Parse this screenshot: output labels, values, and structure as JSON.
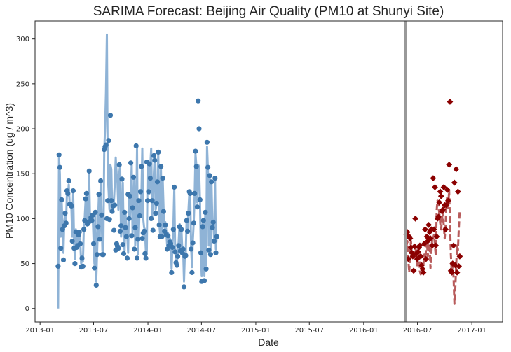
{
  "chart_data": {
    "type": "line",
    "title": "SARIMA Forecast: Beijing Air Quality (PM10 at Shunyi Site)",
    "xlabel": "Date",
    "ylabel": "PM10 Concentration (ug / m^3)",
    "xlim": [
      "2012-12-15",
      "2017-04-15"
    ],
    "ylim": [
      -15,
      320
    ],
    "x_ticks": [
      "2013-01",
      "2013-07",
      "2014-01",
      "2014-07",
      "2015-01",
      "2015-07",
      "2016-01",
      "2016-07",
      "2017-01"
    ],
    "y_ticks": [
      0,
      50,
      100,
      150,
      200,
      250,
      300
    ],
    "grid": false,
    "legend": "none",
    "train_end": "2016-05-22",
    "colors": {
      "fitted_line": "#8fb3d6",
      "observed_points": "#3d77ad",
      "forecast_line": "#b85c5c",
      "forecast_points": "#8b0000",
      "divider": "#999999",
      "axis": "#262626"
    },
    "series": [
      {
        "name": "observed_train",
        "style": "points",
        "start": "2013-03-03",
        "step_days": 3,
        "values": [
          47,
          171,
          157,
          67,
          121,
          88,
          54,
          92,
          106,
          95,
          131,
          128,
          142,
          116,
          116,
          114,
          75,
          131,
          67,
          50,
          85,
          68,
          70,
          82,
          85,
          72,
          46,
          56,
          47,
          88,
          98,
          122,
          128,
          94,
          96,
          153,
          97,
          101,
          98,
          104,
          72,
          45,
          107,
          26,
          60,
          91,
          127,
          77,
          142,
          104,
          60,
          60,
          177,
          180,
          182,
          100,
          120,
          187,
          99,
          215,
          120,
          108,
          114,
          87,
          115,
          65,
          72,
          69,
          67,
          160,
          86,
          92,
          144,
          71,
          61,
          107,
          90,
          80,
          56,
          127,
          100,
          125,
          162,
          81,
          112,
          146,
          66,
          90,
          181,
          56,
          77,
          120,
          103,
          130,
          158,
          78,
          84,
          86,
          61,
          56,
          163,
          120,
          130,
          161,
          145,
          100,
          120,
          87,
          170,
          165,
          106,
          117,
          141,
          174,
          93,
          80,
          158,
          80,
          145,
          108,
          86,
          93,
          82,
          66,
          81,
          70,
          74,
          72,
          40,
          68,
          88,
          135,
          63,
          51,
          48,
          58,
          70,
          91,
          64,
          88,
          62,
          66,
          24,
          58,
          59,
          98,
          86,
          106,
          130,
          128,
          66,
          40,
          73,
          95,
          128,
          175,
          158,
          113,
          231,
          200,
          121,
          62,
          30,
          91,
          98,
          31,
          107,
          44,
          185,
          157,
          65,
          148,
          60,
          141,
          90,
          96,
          75,
          145,
          62,
          80
        ]
      },
      {
        "name": "fitted",
        "style": "line",
        "start": "2013-03-03",
        "step_days": 3,
        "values": [
          0,
          168,
          150,
          80,
          120,
          92,
          62,
          96,
          104,
          98,
          128,
          125,
          138,
          118,
          116,
          112,
          80,
          128,
          72,
          55,
          88,
          72,
          72,
          84,
          86,
          74,
          50,
          58,
          52,
          90,
          100,
          120,
          126,
          96,
          98,
          150,
          100,
          102,
          100,
          104,
          76,
          50,
          106,
          30,
          62,
          94,
          126,
          80,
          140,
          106,
          64,
          64,
          175,
          200,
          240,
          305,
          150,
          130,
          110,
          160,
          155,
          110,
          115,
          120,
          140,
          168,
          150,
          140,
          110,
          150,
          160,
          80,
          92,
          140,
          76,
          64,
          106,
          92,
          82,
          62,
          124,
          100,
          124,
          160,
          84,
          110,
          145,
          70,
          92,
          178,
          60,
          80,
          118,
          104,
          128,
          178,
          100,
          90,
          88,
          64,
          60,
          160,
          140,
          128,
          158,
          178,
          100,
          120,
          150,
          172,
          110,
          116,
          138,
          172,
          96,
          84,
          156,
          84,
          144,
          110,
          90,
          96,
          86,
          70,
          84,
          74,
          78,
          76,
          44,
          72,
          90,
          132,
          68,
          56,
          52,
          62,
          74,
          94,
          66,
          90,
          66,
          68,
          30,
          62,
          62,
          100,
          88,
          108,
          128,
          128,
          70,
          46,
          76,
          96,
          126,
          172,
          158,
          118,
          160,
          158,
          120,
          66,
          36,
          94,
          100,
          36,
          108,
          48,
          180,
          156,
          70,
          146,
          64,
          140,
          94,
          98,
          78,
          142,
          66,
          82
        ]
      },
      {
        "name": "forecast",
        "style": "dashed-line",
        "start": "2016-05-25",
        "step_days": 3,
        "values": [
          70,
          75,
          55,
          40,
          62,
          75,
          58,
          60,
          65,
          55,
          68,
          62,
          48,
          58,
          70,
          42,
          38,
          52,
          44,
          48,
          60,
          55,
          65,
          75,
          58,
          68,
          72,
          45,
          62,
          80,
          78,
          82,
          72,
          58,
          110,
          120,
          115,
          105,
          95,
          88,
          100,
          108,
          92,
          78,
          90,
          118,
          125,
          112,
          132,
          95,
          60,
          40,
          50,
          35,
          5,
          22,
          48,
          70,
          65,
          90,
          110
        ]
      },
      {
        "name": "observed_forecast_period",
        "style": "points",
        "start": "2016-05-25",
        "step_days": 3,
        "values": [
          82,
          85,
          55,
          80,
          78,
          68,
          62,
          58,
          42,
          69,
          100,
          61,
          55,
          63,
          68,
          70,
          58,
          48,
          44,
          40,
          72,
          88,
          55,
          80,
          75,
          93,
          85,
          78,
          88,
          70,
          145,
          88,
          135,
          70,
          80,
          100,
          102,
          118,
          130,
          125,
          108,
          110,
          135,
          115,
          88,
          115,
          132,
          120,
          160,
          230,
          42,
          40,
          50,
          70,
          140,
          48,
          155,
          40,
          130,
          47,
          58
        ]
      }
    ]
  }
}
